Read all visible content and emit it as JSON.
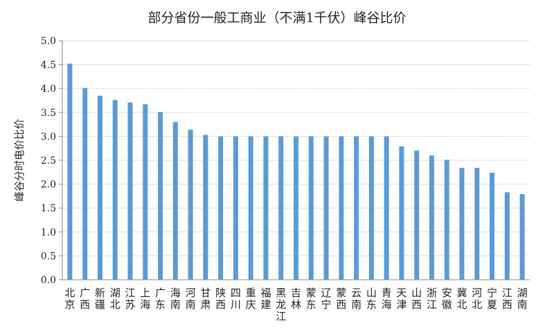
{
  "chart_data": {
    "type": "bar",
    "title": "部分省份一般工商业（不满1千伏）峰谷比价",
    "xlabel": "",
    "ylabel": "峰谷分时电价比价",
    "ylim": [
      0,
      5
    ],
    "yticks": [
      "0.0",
      "0.5",
      "1.0",
      "1.5",
      "2.0",
      "2.5",
      "3.0",
      "3.5",
      "4.0",
      "4.5",
      "5.0"
    ],
    "grid": true,
    "bar_color": "#5b9bd5",
    "categories": [
      "北京",
      "广西",
      "新疆",
      "湖北",
      "江苏",
      "上海",
      "广东",
      "海南",
      "河南",
      "甘肃",
      "陕西",
      "四川",
      "重庆",
      "福建",
      "黑龙江",
      "吉林",
      "蒙东",
      "辽宁",
      "蒙西",
      "云南",
      "山东",
      "青海",
      "天津",
      "山西",
      "浙江",
      "安徽",
      "冀北",
      "河北",
      "宁夏",
      "江西",
      "湖南"
    ],
    "values": [
      4.52,
      4.01,
      3.85,
      3.76,
      3.71,
      3.67,
      3.51,
      3.3,
      3.14,
      3.03,
      3.0,
      3.0,
      3.0,
      3.0,
      3.0,
      3.0,
      3.0,
      3.0,
      3.0,
      3.0,
      3.0,
      3.0,
      2.79,
      2.7,
      2.6,
      2.51,
      2.34,
      2.34,
      2.24,
      1.83,
      1.79
    ]
  }
}
